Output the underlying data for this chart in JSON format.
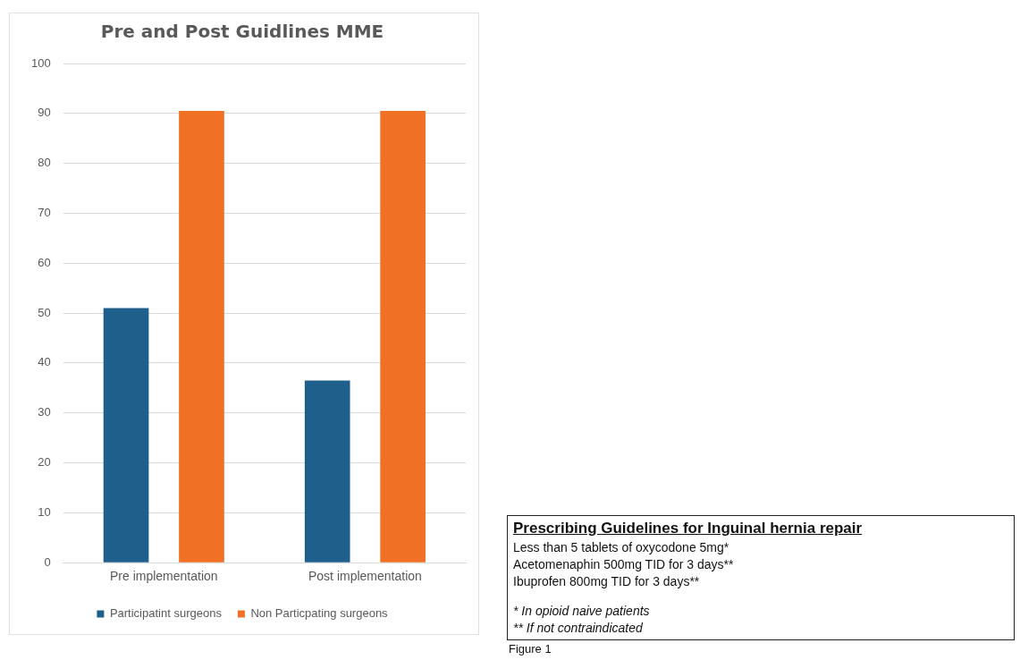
{
  "chart_data": {
    "type": "bar",
    "title": "Pre and Post Guidlines MME",
    "categories": [
      "Pre implementation",
      "Post implementation"
    ],
    "series": [
      {
        "name": "Participatint surgeons",
        "color": "#1f5f8b",
        "values": [
          51,
          36.5
        ]
      },
      {
        "name": "Non Particpating surgeons",
        "color": "#f07125",
        "values": [
          90.5,
          90.5
        ]
      }
    ],
    "ylim": [
      0,
      100
    ],
    "yticks": [
      0,
      10,
      20,
      30,
      40,
      50,
      60,
      70,
      80,
      90,
      100
    ],
    "grid": "y",
    "legend": "bottom",
    "annotations": [
      "Prescribing Guidelines for Inguinal hernia repair",
      "Less than 5 tablets of oxycodone 5mg*",
      "Acetomenaphin 500mg TID for 3 days**",
      "Ibuprofen 800mg TID for 3 days**",
      "* In opioid naive patients",
      "** If not contraindicated",
      "Figure 1"
    ]
  }
}
